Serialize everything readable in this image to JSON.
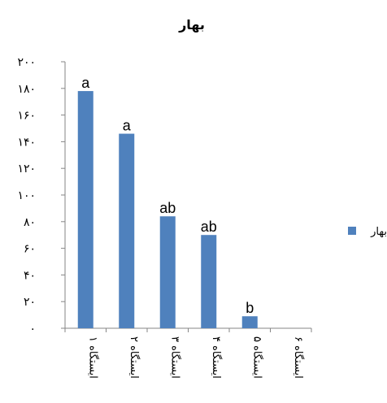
{
  "chart_data": {
    "type": "bar",
    "title": "بهار",
    "xlabel": "",
    "ylabel": "",
    "categories": [
      "ایستگاه ۱",
      "ایستگاه ۲",
      "ایستگاه ۳",
      "ایستگاه ۴",
      "ایستگاه ۵",
      "ایستگاه ۶"
    ],
    "series": [
      {
        "name": "بهار",
        "color": "#4F81BD",
        "values": [
          178,
          146,
          84,
          70,
          9,
          0
        ],
        "labels": [
          "a",
          "a",
          "ab",
          "ab",
          "b",
          ""
        ]
      }
    ],
    "ylim": [
      0,
      200
    ],
    "yticks": [
      0,
      20,
      40,
      60,
      80,
      100,
      120,
      140,
      160,
      180,
      200
    ],
    "ytick_labels": [
      "۰",
      "۲۰",
      "۴۰",
      "۶۰",
      "۸۰",
      "۱۰۰",
      "۱۲۰",
      "۱۴۰",
      "۱۶۰",
      "۱۸۰",
      "۲۰۰"
    ],
    "grid": false,
    "legend_position": "right"
  }
}
